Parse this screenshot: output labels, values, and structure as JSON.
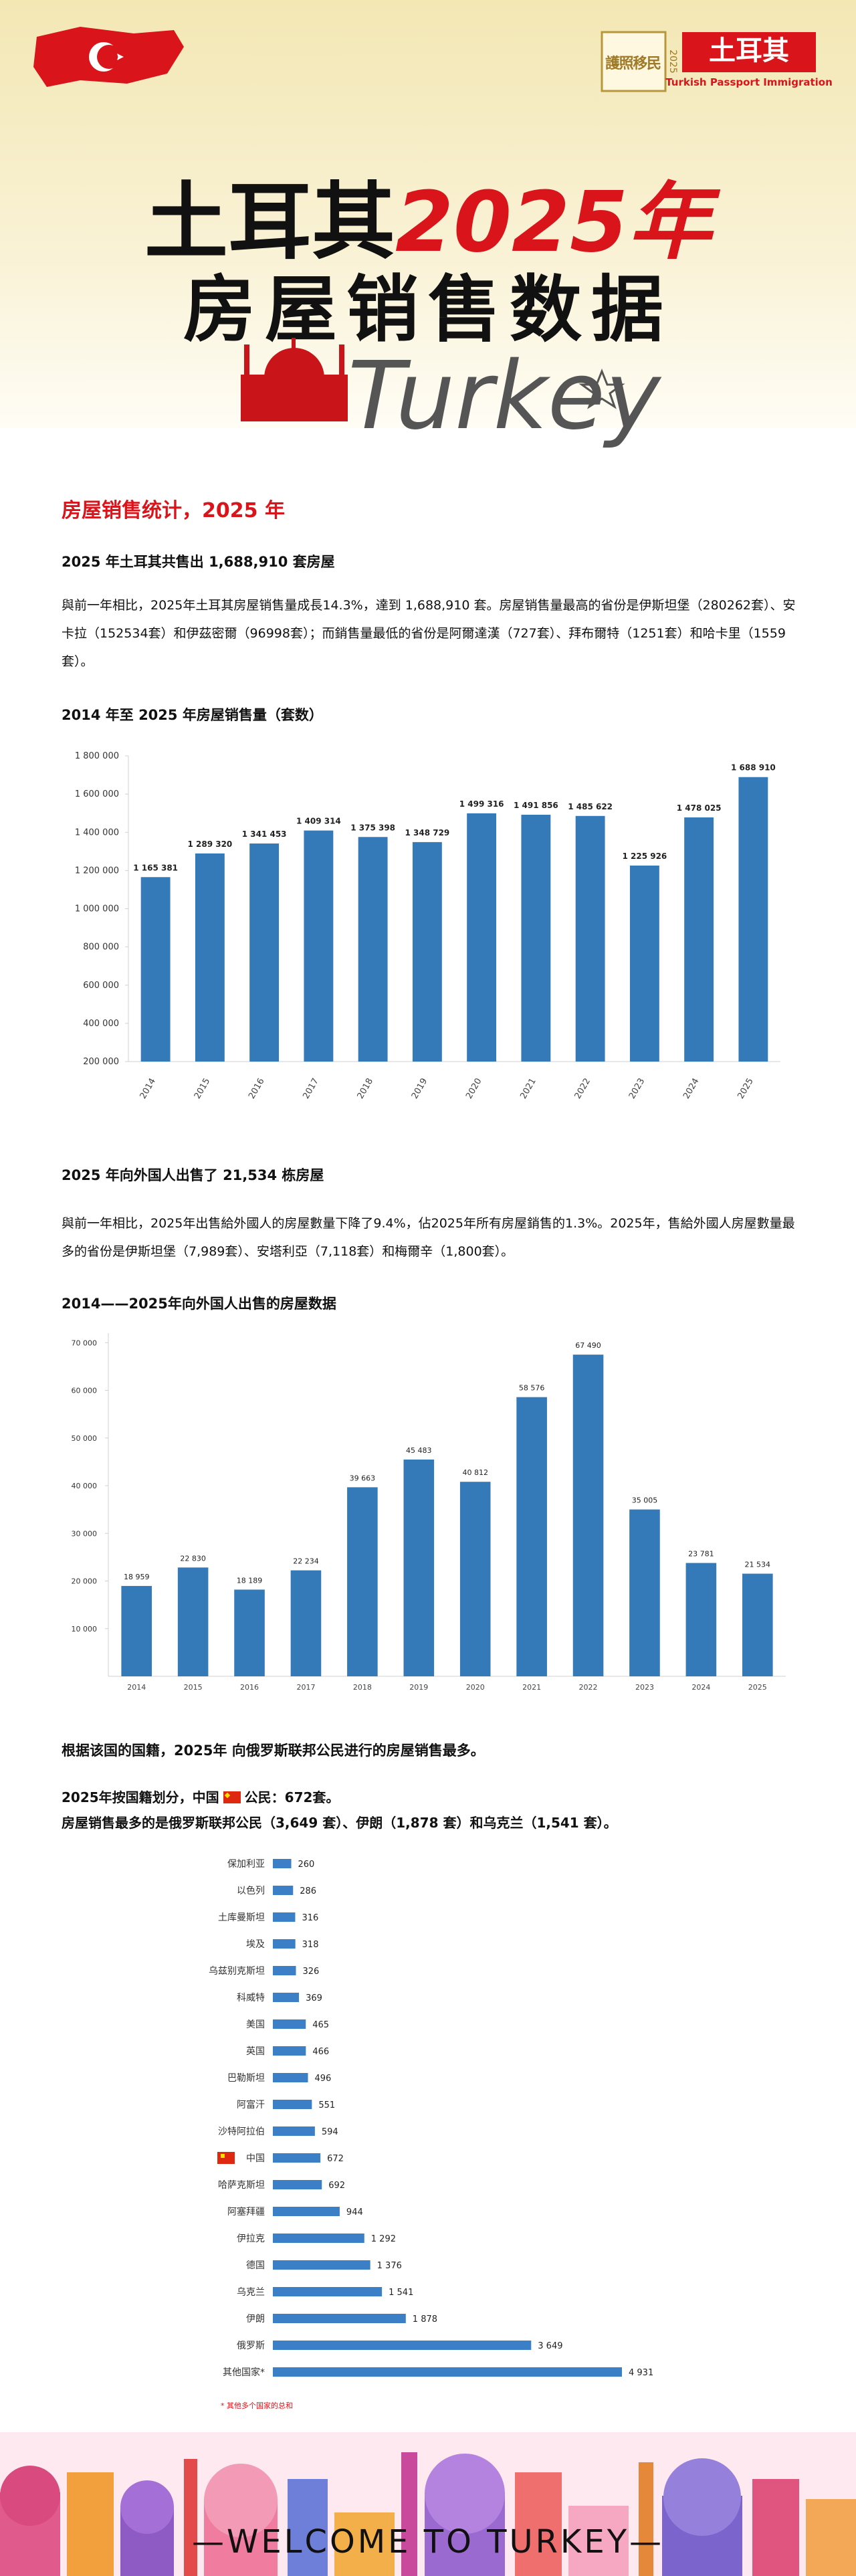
{
  "header": {
    "logo_text": "護照移民",
    "logo_year": "2025",
    "brand": "土耳其",
    "brand_en": "Turkish Passport Immigration",
    "title_black": "土耳其",
    "title_red": "2025年",
    "subtitle": "房屋销售数据",
    "script": "Turkey"
  },
  "section_heading": "房屋销售统计，2025 年",
  "block1": {
    "title": "2025 年土耳其共售出 1,688,910 套房屋",
    "text": "與前一年相比，2025年土耳其房屋销售量成長14.3%，達到 1,688,910 套。房屋销售量最高的省份是伊斯坦堡（280262套）、安卡拉（152534套）和伊茲密爾（96998套）；而銷售量最低的省份是阿爾達漢（727套）、拜布爾特（1251套）和哈卡里（1559套）。"
  },
  "block2": {
    "title": "2025 年向外国人出售了 21,534 栋房屋",
    "text": "與前一年相比，2025年出售給外國人的房屋數量下降了9.4%，佔2025年所有房屋銷售的1.3%。2025年，售給外國人房屋數量最多的省份是伊斯坦堡（7,989套）、安塔利亞（7,118套）和梅爾辛（1,800套）。"
  },
  "block3": {
    "title": "根据该国的国籍，2025年 向俄罗斯联邦公民进行的房屋销售最多。",
    "line1_before": "2025年按国籍划分，中国",
    "line1_after": "公民：672套。",
    "line2": "房屋销售最多的是俄罗斯联邦公民（3,649 套）、伊朗（1,878 套）和乌克兰（1,541 套）。"
  },
  "chart_data": [
    {
      "type": "bar",
      "title": "2014 年至 2025 年房屋销售量（套数）",
      "categories": [
        "2014",
        "2015",
        "2016",
        "2017",
        "2018",
        "2019",
        "2020",
        "2021",
        "2022",
        "2023",
        "2024",
        "2025"
      ],
      "values": [
        1165381,
        1289320,
        1341453,
        1409314,
        1375398,
        1348729,
        1499316,
        1491856,
        1485622,
        1225926,
        1478025,
        1688910
      ],
      "value_labels": [
        "1 165 381",
        "1 289 320",
        "1 341 453",
        "1 409 314",
        "1 375 398",
        "1 348 729",
        "1 499 316",
        "1 491 856",
        "1 485 622",
        "1 225 926",
        "1 478 025",
        "1 688 910"
      ],
      "color": "#3479b8",
      "ylim": [
        200000,
        1800000
      ],
      "yticks": [
        {
          "value": 200000,
          "label": "200 000"
        },
        {
          "value": 400000,
          "label": "400 000"
        },
        {
          "value": 600000,
          "label": "600 000"
        },
        {
          "value": 800000,
          "label": "800 000"
        },
        {
          "value": 1000000,
          "label": "1 000 000"
        },
        {
          "value": 1200000,
          "label": "1 200 000"
        },
        {
          "value": 1400000,
          "label": "1 400 000"
        },
        {
          "value": 1600000,
          "label": "1 600 000"
        },
        {
          "value": 1800000,
          "label": "1 800 000"
        }
      ],
      "grid": false
    },
    {
      "type": "bar",
      "title": "2014——2025年向外国人出售的房屋数据",
      "categories": [
        "2014",
        "2015",
        "2016",
        "2017",
        "2018",
        "2019",
        "2020",
        "2021",
        "2022",
        "2023",
        "2024",
        "2025"
      ],
      "values": [
        18959,
        22830,
        18189,
        22234,
        39663,
        45483,
        40812,
        58576,
        67490,
        35005,
        23781,
        21534
      ],
      "value_labels": [
        "18 959",
        "22 830",
        "18 189",
        "22 234",
        "39 663",
        "45 483",
        "40 812",
        "58 576",
        "67 490",
        "35 005",
        "23 781",
        "21 534"
      ],
      "color": "#3479b8",
      "ylim": [
        0,
        72000
      ],
      "yticks": [
        {
          "value": 10000,
          "label": "10 000"
        },
        {
          "value": 20000,
          "label": "20 000"
        },
        {
          "value": 30000,
          "label": "30 000"
        },
        {
          "value": 40000,
          "label": "40 000"
        },
        {
          "value": 50000,
          "label": "50 000"
        },
        {
          "value": 60000,
          "label": "60 000"
        },
        {
          "value": 70000,
          "label": "70 000"
        }
      ],
      "grid": false
    },
    {
      "type": "hbar",
      "categories": [
        "保加利亚",
        "以色列",
        "土库曼斯坦",
        "埃及",
        "乌兹别克斯坦",
        "科威特",
        "美国",
        "英国",
        "巴勒斯坦",
        "阿富汗",
        "沙特阿拉伯",
        "中国",
        "哈萨克斯坦",
        "阿塞拜疆",
        "伊拉克",
        "德国",
        "乌克兰",
        "伊朗",
        "俄罗斯",
        "其他国家*"
      ],
      "values": [
        260,
        286,
        316,
        318,
        326,
        369,
        465,
        466,
        496,
        551,
        594,
        672,
        692,
        944,
        1292,
        1376,
        1541,
        1878,
        3649,
        4931
      ],
      "value_labels": [
        "260",
        "286",
        "316",
        "318",
        "326",
        "369",
        "465",
        "466",
        "496",
        "551",
        "594",
        "672",
        "692",
        "944",
        "1 292",
        "1 376",
        "1 541",
        "1 878",
        "3 649",
        "4 931"
      ],
      "color": "#3b80c6",
      "note": "* 其他多个国家的总和"
    }
  ],
  "footer": {
    "text": "—WELCOME TO TURKEY—"
  }
}
